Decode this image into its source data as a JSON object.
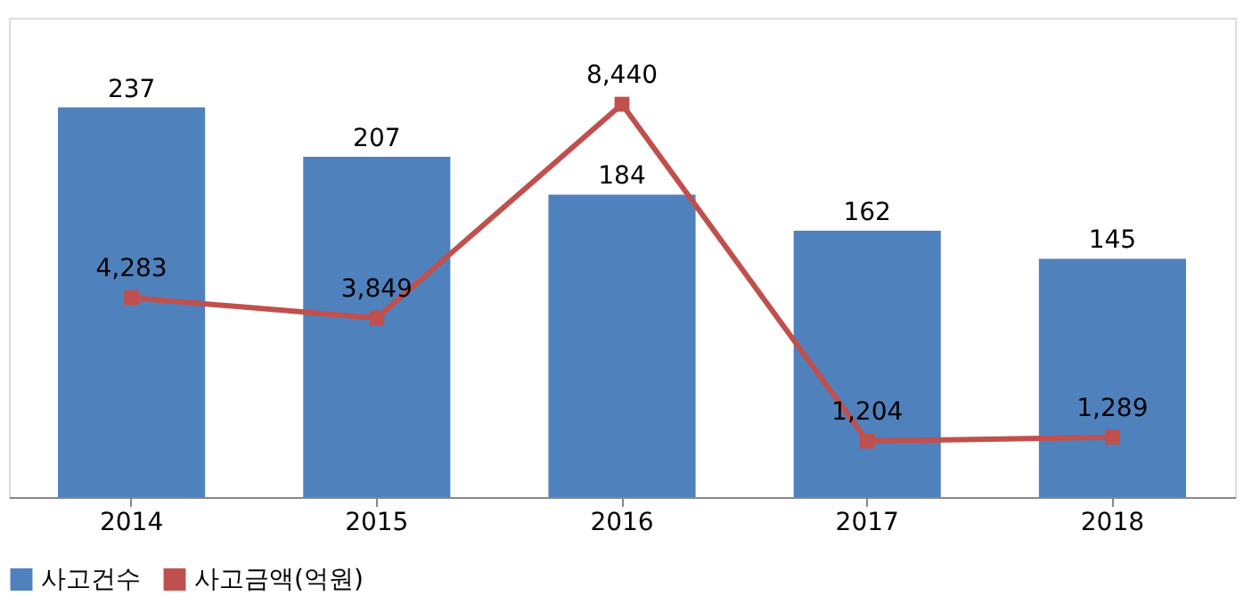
{
  "chart_data": {
    "type": "bar",
    "categories": [
      "2014",
      "2015",
      "2016",
      "2017",
      "2018"
    ],
    "series": [
      {
        "name": "사고건수",
        "color": "#4f81bd",
        "values": [
          237,
          207,
          184,
          162,
          145
        ]
      },
      {
        "name": "사고금액(억원)",
        "type": "line",
        "axis": "y2",
        "color": "#c0504d",
        "marker": "square",
        "values": [
          4283,
          3849,
          8440,
          1204,
          1289
        ],
        "value_labels": [
          "4,283",
          "3,849",
          "8,440",
          "1,204",
          "1,289"
        ]
      }
    ],
    "data_labels": true,
    "legend": "bottom",
    "grid": false
  }
}
